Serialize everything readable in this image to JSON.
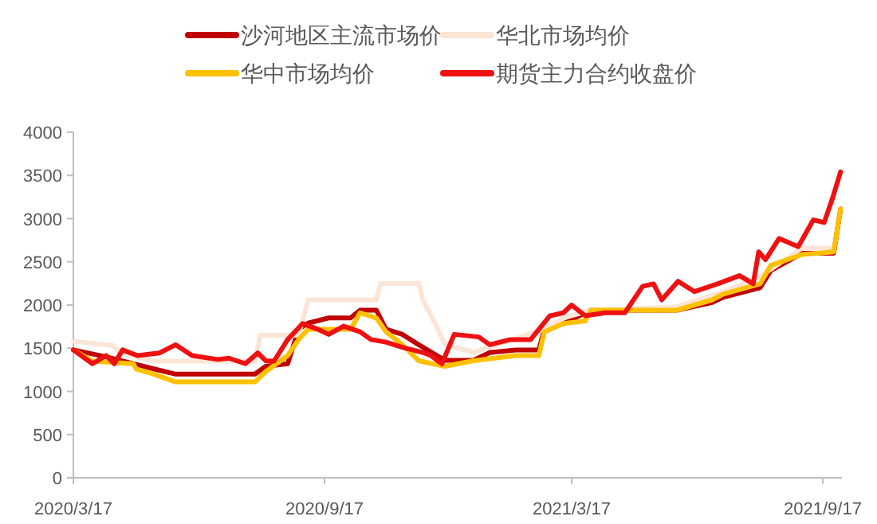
{
  "chart_data": {
    "type": "line",
    "legend": "top",
    "grid": false,
    "xlim": [
      "2020-03-17",
      "2021-10-01"
    ],
    "ylim": [
      0,
      4000
    ],
    "xticks": [
      {
        "value": "2020-03-17",
        "label": "2020/3/17"
      },
      {
        "value": "2020-09-17",
        "label": "2020/9/17"
      },
      {
        "value": "2021-03-17",
        "label": "2021/3/17"
      },
      {
        "value": "2021-09-17",
        "label": "2021/9/17"
      }
    ],
    "yticks": [
      0,
      500,
      1000,
      1500,
      2000,
      2500,
      3000,
      3500,
      4000
    ],
    "series": [
      {
        "name": "沙河地区主流市场价",
        "color": "#c00000",
        "x": [
          "2020-03-17",
          "2020-04-10",
          "2020-05-15",
          "2020-05-31",
          "2020-07-28",
          "2020-08-05",
          "2020-08-21",
          "2020-08-29",
          "2020-09-05",
          "2020-09-20",
          "2020-10-06",
          "2020-10-13",
          "2020-10-25",
          "2020-11-01",
          "2020-11-13",
          "2020-11-25",
          "2020-12-14",
          "2021-01-04",
          "2021-01-16",
          "2021-02-04",
          "2021-02-21",
          "2021-02-25",
          "2021-03-11",
          "2021-03-31",
          "2021-06-02",
          "2021-06-28",
          "2021-07-06",
          "2021-08-02",
          "2021-08-10",
          "2021-09-02",
          "2021-09-25",
          "2021-09-30"
        ],
        "values": [
          1480,
          1400,
          1260,
          1200,
          1200,
          1290,
          1320,
          1720,
          1790,
          1850,
          1850,
          1940,
          1940,
          1720,
          1660,
          1540,
          1360,
          1360,
          1450,
          1480,
          1480,
          1720,
          1785,
          1940,
          1940,
          2030,
          2090,
          2200,
          2400,
          2600,
          2600,
          3110
        ]
      },
      {
        "name": "华北市场均价",
        "color": "#fbe5d6",
        "x": [
          "2020-03-17",
          "2020-04-15",
          "2020-04-20",
          "2020-05-15",
          "2020-07-28",
          "2020-08-01",
          "2020-08-29",
          "2020-09-05",
          "2020-10-25",
          "2020-10-28",
          "2020-11-25",
          "2020-11-28",
          "2020-12-05",
          "2020-12-14",
          "2021-01-04",
          "2021-02-25",
          "2021-03-11",
          "2021-03-31",
          "2021-06-02",
          "2021-07-06",
          "2021-08-02",
          "2021-09-02",
          "2021-09-25"
        ],
        "values": [
          1580,
          1530,
          1450,
          1350,
          1350,
          1650,
          1650,
          2060,
          2060,
          2250,
          2250,
          2060,
          1850,
          1550,
          1450,
          1720,
          1850,
          1940,
          1980,
          2150,
          2330,
          2660,
          2660
        ]
      },
      {
        "name": "华中市场均价",
        "color": "#ffc000",
        "x": [
          "2020-03-17",
          "2020-03-31",
          "2020-04-30",
          "2020-05-02",
          "2020-05-15",
          "2020-05-31",
          "2020-07-28",
          "2020-08-05",
          "2020-08-21",
          "2020-08-29",
          "2020-09-05",
          "2020-09-20",
          "2020-10-06",
          "2020-10-13",
          "2020-10-25",
          "2020-11-01",
          "2020-11-13",
          "2020-11-25",
          "2020-12-14",
          "2021-01-04",
          "2021-02-04",
          "2021-02-21",
          "2021-02-25",
          "2021-03-11",
          "2021-03-27",
          "2021-03-31",
          "2021-06-02",
          "2021-06-28",
          "2021-07-06",
          "2021-08-02",
          "2021-08-10",
          "2021-09-02",
          "2021-09-25",
          "2021-09-30"
        ],
        "values": [
          1480,
          1350,
          1320,
          1260,
          1200,
          1110,
          1110,
          1230,
          1415,
          1600,
          1720,
          1720,
          1720,
          1910,
          1850,
          1690,
          1540,
          1355,
          1290,
          1355,
          1415,
          1415,
          1690,
          1785,
          1815,
          1940,
          1940,
          2060,
          2125,
          2245,
          2460,
          2585,
          2615,
          3110
        ]
      },
      {
        "name": "期货主力合约收盘价",
        "color": "#ee1111",
        "x": [
          "2020-03-17",
          "2020-03-31",
          "2020-04-10",
          "2020-04-16",
          "2020-04-22",
          "2020-05-03",
          "2020-05-19",
          "2020-05-31",
          "2020-06-12",
          "2020-07-01",
          "2020-07-09",
          "2020-07-21",
          "2020-07-30",
          "2020-08-05",
          "2020-08-11",
          "2020-08-21",
          "2020-09-01",
          "2020-09-12",
          "2020-09-20",
          "2020-10-01",
          "2020-10-13",
          "2020-10-21",
          "2020-11-01",
          "2020-11-13",
          "2020-11-29",
          "2020-12-04",
          "2020-12-12",
          "2020-12-21",
          "2021-01-08",
          "2021-01-16",
          "2021-01-31",
          "2021-02-15",
          "2021-03-01",
          "2021-03-11",
          "2021-03-17",
          "2021-03-27",
          "2021-04-11",
          "2021-04-25",
          "2021-05-08",
          "2021-05-16",
          "2021-05-22",
          "2021-06-03",
          "2021-06-15",
          "2021-07-02",
          "2021-07-18",
          "2021-07-28",
          "2021-08-01",
          "2021-08-06",
          "2021-08-16",
          "2021-08-30",
          "2021-09-10",
          "2021-09-18",
          "2021-09-24",
          "2021-09-30"
        ],
        "values": [
          1480,
          1320,
          1415,
          1320,
          1480,
          1415,
          1445,
          1540,
          1415,
          1370,
          1385,
          1320,
          1445,
          1355,
          1350,
          1600,
          1785,
          1720,
          1660,
          1755,
          1690,
          1600,
          1570,
          1510,
          1445,
          1415,
          1320,
          1660,
          1630,
          1540,
          1600,
          1600,
          1875,
          1910,
          2000,
          1875,
          1910,
          1910,
          2215,
          2245,
          2060,
          2275,
          2155,
          2245,
          2340,
          2245,
          2615,
          2525,
          2770,
          2675,
          2985,
          2955,
          3230,
          3540
        ]
      }
    ]
  }
}
